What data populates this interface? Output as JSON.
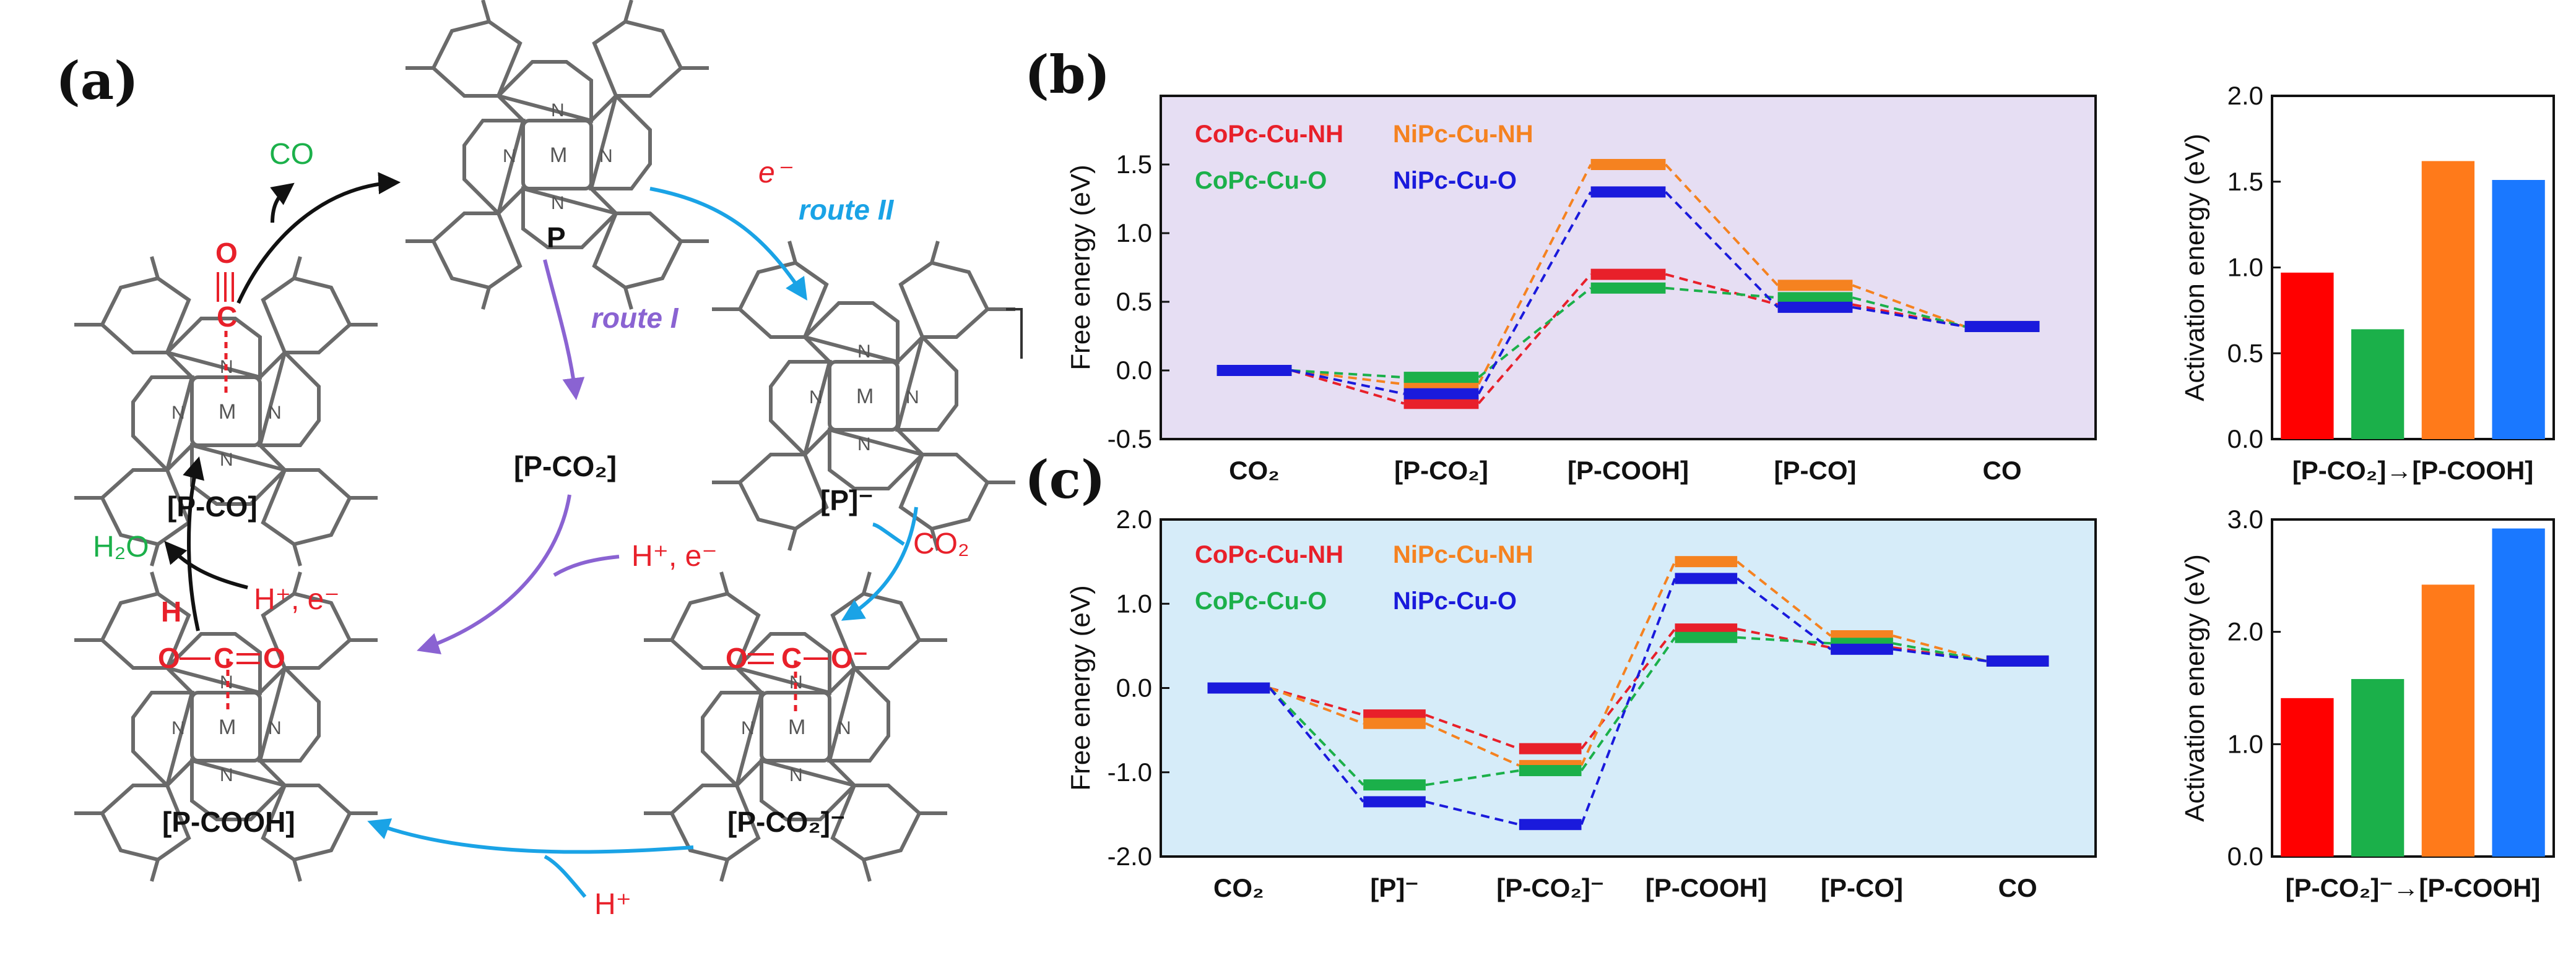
{
  "scheme": {
    "panel_label": "(a)",
    "species": {
      "p": "P",
      "p_minus": "[P]⁻",
      "p_co2": "[P-CO₂]",
      "p_co2_minus": "[P-CO₂]⁻",
      "p_cooh": "[P-COOH]",
      "p_co": "[P-CO]"
    },
    "arrow_labels": {
      "co": "CO",
      "electron": "e⁻",
      "route_ii": "route II",
      "route_i": "route I",
      "co2": "CO₂",
      "h_e_right": "H⁺, e⁻",
      "h_e_left": "H⁺, e⁻",
      "h2o": "H₂O",
      "h_plus": "H⁺"
    },
    "atoms": {
      "n": "N",
      "m": "M",
      "o": "O",
      "o_minus": "O⁻",
      "c": "C",
      "h": "H"
    },
    "colors": {
      "black": "#111111",
      "cyan": "#1aa3e6",
      "purple": "#8a63d2",
      "red": "#e8202a",
      "green": "#1bb04a",
      "gray": "#6a6a6a"
    }
  },
  "chart_data": [
    {
      "id": "b-free-energy",
      "panel_label": "(b)",
      "type": "line",
      "subtype": "free-energy-diagram",
      "background": "#e6def3",
      "ylabel": "Free energy (eV)",
      "ylim": [
        -0.5,
        2.0
      ],
      "yticks": [
        "-0.5",
        "0.0",
        "0.5",
        "1.0",
        "1.5"
      ],
      "yticks_values": [
        -0.5,
        0.0,
        0.5,
        1.0,
        1.5
      ],
      "categories": [
        "CO₂",
        "[P-CO₂]",
        "[P-COOH]",
        "[P-CO]",
        "CO"
      ],
      "legend": [
        "CoPc-Cu-NH",
        "NiPc-Cu-NH",
        "CoPc-Cu-O",
        "NiPc-Cu-O"
      ],
      "series": [
        {
          "name": "CoPc-Cu-NH",
          "color": "#e8202a",
          "values": [
            0.0,
            -0.24,
            0.7,
            0.48,
            0.32
          ]
        },
        {
          "name": "NiPc-Cu-NH",
          "color": "#f58220",
          "values": [
            0.0,
            -0.1,
            1.5,
            0.62,
            0.32
          ]
        },
        {
          "name": "CoPc-Cu-O",
          "color": "#1bb04a",
          "values": [
            0.0,
            -0.05,
            0.6,
            0.53,
            0.32
          ]
        },
        {
          "name": "NiPc-Cu-O",
          "color": "#1a1adc",
          "values": [
            0.0,
            -0.17,
            1.3,
            0.46,
            0.32
          ]
        }
      ]
    },
    {
      "id": "b-activation",
      "type": "bar",
      "ylabel": "Activation energy (eV)",
      "ylim": [
        0.0,
        2.0
      ],
      "yticks": [
        "0.0",
        "0.5",
        "1.0",
        "1.5",
        "2.0"
      ],
      "yticks_values": [
        0.0,
        0.5,
        1.0,
        1.5,
        2.0
      ],
      "xlabel": "[P-CO₂]→[P-COOH]",
      "categories": [
        "CoPc-Cu-NH",
        "CoPc-Cu-O",
        "NiPc-Cu-NH",
        "NiPc-Cu-O"
      ],
      "values": [
        0.97,
        0.64,
        1.62,
        1.51
      ],
      "colors": [
        "#ff0000",
        "#1bb04a",
        "#ff7a1a",
        "#1a78ff"
      ]
    },
    {
      "id": "c-free-energy",
      "panel_label": "(c)",
      "type": "line",
      "subtype": "free-energy-diagram",
      "background": "#d6ecf9",
      "ylabel": "Free energy (eV)",
      "ylim": [
        -2.0,
        2.0
      ],
      "yticks": [
        "-2.0",
        "-1.0",
        "0.0",
        "1.0",
        "2.0"
      ],
      "yticks_values": [
        -2.0,
        -1.0,
        0.0,
        1.0,
        2.0
      ],
      "categories": [
        "CO₂",
        "[P]⁻",
        "[P-CO₂]⁻",
        "[P-COOH]",
        "[P-CO]",
        "CO"
      ],
      "legend": [
        "CoPc-Cu-NH",
        "NiPc-Cu-NH",
        "CoPc-Cu-O",
        "NiPc-Cu-O"
      ],
      "series": [
        {
          "name": "CoPc-Cu-NH",
          "color": "#e8202a",
          "values": [
            0.0,
            -0.32,
            -0.72,
            0.7,
            0.48,
            0.32
          ]
        },
        {
          "name": "NiPc-Cu-NH",
          "color": "#f58220",
          "values": [
            0.0,
            -0.42,
            -0.92,
            1.5,
            0.62,
            0.32
          ]
        },
        {
          "name": "CoPc-Cu-O",
          "color": "#1bb04a",
          "values": [
            0.0,
            -1.15,
            -0.98,
            0.6,
            0.53,
            0.32
          ]
        },
        {
          "name": "NiPc-Cu-O",
          "color": "#1a1adc",
          "values": [
            0.0,
            -1.35,
            -1.62,
            1.3,
            0.46,
            0.32
          ]
        }
      ]
    },
    {
      "id": "c-activation",
      "type": "bar",
      "ylabel": "Activation energy (eV)",
      "ylim": [
        0.0,
        3.0
      ],
      "yticks": [
        "0.0",
        "1.0",
        "2.0",
        "3.0"
      ],
      "yticks_values": [
        0.0,
        1.0,
        2.0,
        3.0
      ],
      "xlabel": "[P-CO₂]⁻→[P-COOH]",
      "categories": [
        "CoPc-Cu-NH",
        "CoPc-Cu-O",
        "NiPc-Cu-NH",
        "NiPc-Cu-O"
      ],
      "values": [
        1.41,
        1.58,
        2.42,
        2.92
      ],
      "colors": [
        "#ff0000",
        "#1bb04a",
        "#ff7a1a",
        "#1a78ff"
      ]
    }
  ]
}
